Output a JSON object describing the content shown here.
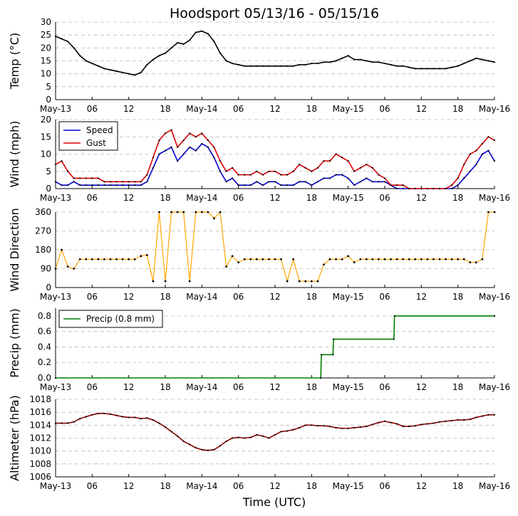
{
  "title": "Hoodsport 05/13/16 - 05/15/16",
  "xlabel": "Time (UTC)",
  "time_ticks": [
    "May-13",
    "06",
    "12",
    "18",
    "May-14",
    "06",
    "12",
    "18",
    "May-15",
    "06",
    "12",
    "18",
    "May-16"
  ],
  "time_range_hours": [
    0,
    72
  ],
  "colors": {
    "temp": "#000000",
    "speed": "#0000cc",
    "gust": "#dd0000",
    "direction": "#ffa500",
    "precip": "#008000",
    "altimeter": "#8b0000",
    "grid": "#bbbbbb"
  },
  "chart_data": [
    {
      "type": "line",
      "name": "temperature",
      "ylabel": "Temp (°C)",
      "ylim": [
        0,
        30
      ],
      "yticks": [
        "0",
        "5",
        "10",
        "15",
        "20",
        "25",
        "30"
      ],
      "x_hours": [
        0,
        1,
        2,
        3,
        4,
        5,
        6,
        7,
        8,
        9,
        10,
        11,
        12,
        13,
        14,
        15,
        16,
        17,
        18,
        19,
        20,
        21,
        22,
        23,
        24,
        25,
        26,
        27,
        28,
        29,
        30,
        31,
        32,
        33,
        34,
        35,
        36,
        37,
        38,
        39,
        40,
        41,
        42,
        43,
        44,
        45,
        46,
        47,
        48,
        49,
        50,
        51,
        52,
        53,
        54,
        55,
        56,
        57,
        58,
        59,
        60,
        61,
        62,
        63,
        64,
        65,
        66,
        67,
        68,
        69,
        70,
        71,
        72
      ],
      "series": [
        {
          "name": "Temp",
          "values": [
            24.5,
            23.5,
            22.5,
            20,
            17,
            15,
            14,
            13,
            12,
            11.5,
            11,
            10.5,
            10,
            9.5,
            10.5,
            13.5,
            15.5,
            17,
            18,
            20,
            22,
            21.5,
            23,
            26,
            26.5,
            25.5,
            22.5,
            18,
            15,
            14,
            13.5,
            13,
            13,
            13,
            13,
            13,
            13,
            13,
            13,
            13,
            13.5,
            13.5,
            14,
            14,
            14.5,
            14.5,
            15,
            16,
            17,
            15.5,
            15.5,
            15,
            14.5,
            14.5,
            14,
            13.5,
            13,
            13,
            12.5,
            12,
            12,
            12,
            12,
            12,
            12,
            12.5,
            13,
            14,
            15,
            16,
            15.5,
            15,
            14.5
          ]
        }
      ]
    },
    {
      "type": "line",
      "name": "wind",
      "ylabel": "Wind (mph)",
      "ylim": [
        0,
        20
      ],
      "yticks": [
        "0",
        "5",
        "10",
        "15",
        "20"
      ],
      "legend": [
        "Speed",
        "Gust"
      ],
      "legend_position": "top-left",
      "x_hours": [
        0,
        1,
        2,
        3,
        4,
        5,
        6,
        7,
        8,
        9,
        10,
        11,
        12,
        13,
        14,
        15,
        16,
        17,
        18,
        19,
        20,
        21,
        22,
        23,
        24,
        25,
        26,
        27,
        28,
        29,
        30,
        31,
        32,
        33,
        34,
        35,
        36,
        37,
        38,
        39,
        40,
        41,
        42,
        43,
        44,
        45,
        46,
        47,
        48,
        49,
        50,
        51,
        52,
        53,
        54,
        55,
        56,
        57,
        58,
        59,
        60,
        61,
        62,
        63,
        64,
        65,
        66,
        67,
        68,
        69,
        70,
        71,
        72
      ],
      "series": [
        {
          "name": "Speed",
          "values": [
            2,
            1,
            1,
            2,
            1,
            1,
            1,
            1,
            1,
            1,
            1,
            1,
            1,
            1,
            1,
            2,
            6,
            10,
            11,
            12,
            8,
            10,
            12,
            11,
            13,
            12,
            9,
            5,
            2,
            3,
            1,
            1,
            1,
            2,
            1,
            2,
            2,
            1,
            1,
            1,
            2,
            2,
            1,
            2,
            3,
            3,
            4,
            4,
            3,
            1,
            2,
            3,
            2,
            2,
            2,
            1,
            0,
            0,
            0,
            0,
            0,
            0,
            0,
            0,
            0,
            0,
            1,
            3,
            5,
            7,
            10,
            11,
            8
          ]
        },
        {
          "name": "Gust",
          "values": [
            7,
            8,
            5,
            3,
            3,
            3,
            3,
            3,
            2,
            2,
            2,
            2,
            2,
            2,
            2,
            4,
            9,
            14,
            16,
            17,
            12,
            14,
            16,
            15,
            16,
            14,
            12,
            8,
            5,
            6,
            4,
            4,
            4,
            5,
            4,
            5,
            5,
            4,
            4,
            5,
            7,
            6,
            5,
            6,
            8,
            8,
            10,
            9,
            8,
            5,
            6,
            7,
            6,
            4,
            3,
            1,
            1,
            1,
            0,
            0,
            0,
            0,
            0,
            0,
            0,
            1,
            3,
            7,
            10,
            11,
            13,
            15,
            14
          ]
        }
      ]
    },
    {
      "type": "scatter",
      "name": "wind_direction",
      "ylabel": "Wind Direction",
      "ylim": [
        0,
        360
      ],
      "yticks": [
        "0",
        "90",
        "180",
        "270",
        "360"
      ],
      "x_hours": [
        0,
        1,
        2,
        3,
        4,
        5,
        6,
        7,
        8,
        9,
        10,
        11,
        12,
        13,
        14,
        15,
        16,
        17,
        18,
        19,
        20,
        21,
        22,
        23,
        24,
        25,
        26,
        27,
        28,
        29,
        30,
        31,
        32,
        33,
        34,
        35,
        36,
        37,
        38,
        39,
        40,
        41,
        42,
        43,
        44,
        45,
        46,
        47,
        48,
        49,
        50,
        51,
        52,
        53,
        54,
        55,
        56,
        57,
        58,
        59,
        60,
        61,
        62,
        63,
        64,
        65,
        66,
        67,
        68,
        69,
        70,
        71,
        72
      ],
      "series": [
        {
          "name": "Direction",
          "values": [
            90,
            180,
            100,
            90,
            135,
            135,
            135,
            135,
            135,
            135,
            135,
            135,
            135,
            135,
            150,
            155,
            30,
            360,
            30,
            360,
            360,
            360,
            30,
            360,
            360,
            360,
            330,
            360,
            100,
            150,
            120,
            135,
            135,
            135,
            135,
            135,
            135,
            135,
            30,
            135,
            30,
            30,
            30,
            30,
            110,
            135,
            135,
            135,
            150,
            120,
            135,
            135,
            135,
            135,
            135,
            135,
            135,
            135,
            135,
            135,
            135,
            135,
            135,
            135,
            135,
            135,
            135,
            135,
            120,
            120,
            135,
            360,
            360
          ]
        }
      ]
    },
    {
      "type": "line",
      "name": "precipitation",
      "ylabel": "Precip (mm)",
      "ylim": [
        0,
        0.9
      ],
      "yticks": [
        "0.0",
        "0.2",
        "0.4",
        "0.6",
        "0.8"
      ],
      "legend": [
        "Precip (0.8 mm)"
      ],
      "legend_position": "top-left",
      "x_hours": [
        0,
        43.5,
        43.6,
        45.5,
        45.6,
        55.5,
        55.6,
        72
      ],
      "series": [
        {
          "name": "Precip",
          "values": [
            0,
            0,
            0.3,
            0.3,
            0.5,
            0.5,
            0.8,
            0.8
          ]
        }
      ]
    },
    {
      "type": "line",
      "name": "altimeter",
      "ylabel": "Altimeter (hPa)",
      "ylim": [
        1006,
        1018
      ],
      "yticks": [
        "1006",
        "1008",
        "1010",
        "1012",
        "1014",
        "1016",
        "1018"
      ],
      "x_hours": [
        0,
        1,
        2,
        3,
        4,
        5,
        6,
        7,
        8,
        9,
        10,
        11,
        12,
        13,
        14,
        15,
        16,
        17,
        18,
        19,
        20,
        21,
        22,
        23,
        24,
        25,
        26,
        27,
        28,
        29,
        30,
        31,
        32,
        33,
        34,
        35,
        36,
        37,
        38,
        39,
        40,
        41,
        42,
        43,
        44,
        45,
        46,
        47,
        48,
        49,
        50,
        51,
        52,
        53,
        54,
        55,
        56,
        57,
        58,
        59,
        60,
        61,
        62,
        63,
        64,
        65,
        66,
        67,
        68,
        69,
        70,
        71,
        72
      ],
      "series": [
        {
          "name": "Altimeter",
          "values": [
            1014.3,
            1014.3,
            1014.3,
            1014.5,
            1015,
            1015.3,
            1015.6,
            1015.8,
            1015.8,
            1015.7,
            1015.5,
            1015.3,
            1015.2,
            1015.2,
            1015,
            1015.1,
            1014.8,
            1014.3,
            1013.7,
            1013,
            1012.3,
            1011.5,
            1011,
            1010.5,
            1010.2,
            1010.1,
            1010.2,
            1010.8,
            1011.5,
            1012,
            1012.1,
            1012,
            1012.1,
            1012.5,
            1012.3,
            1012,
            1012.5,
            1013,
            1013.1,
            1013.3,
            1013.6,
            1014,
            1014,
            1013.9,
            1013.9,
            1013.8,
            1013.6,
            1013.5,
            1013.5,
            1013.6,
            1013.7,
            1013.8,
            1014.1,
            1014.4,
            1014.6,
            1014.4,
            1014.2,
            1013.8,
            1013.8,
            1013.9,
            1014.1,
            1014.2,
            1014.3,
            1014.5,
            1014.6,
            1014.7,
            1014.8,
            1014.8,
            1014.9,
            1015.2,
            1015.4,
            1015.6,
            1015.6
          ]
        }
      ]
    }
  ]
}
